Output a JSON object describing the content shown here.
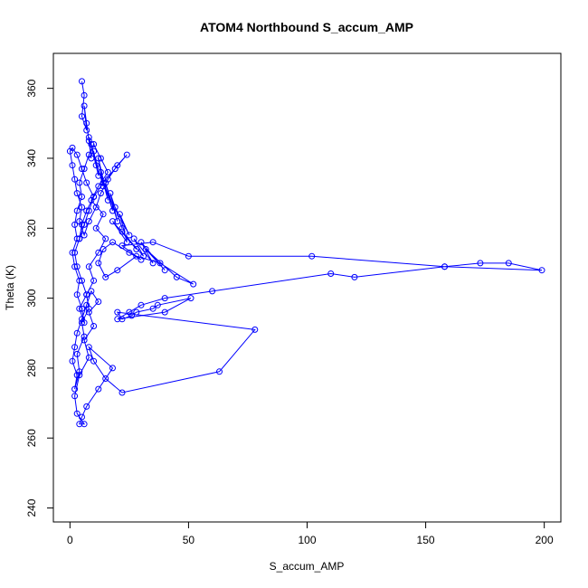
{
  "chart_data": {
    "type": "line",
    "title": "ATOM4 Northbound S_accum_AMP",
    "xlabel": "S_accum_AMP",
    "ylabel": "Theta (K)",
    "xlim": [
      -7,
      207
    ],
    "ylim": [
      236,
      370
    ],
    "xticks": [
      0,
      50,
      100,
      150,
      200
    ],
    "yticks": [
      240,
      260,
      280,
      300,
      320,
      340,
      360
    ],
    "grid": false,
    "legend": "none",
    "line_color": "#0000ff",
    "marker": "open-circle",
    "series": [
      {
        "x": [
          5,
          6,
          5,
          7,
          6,
          8,
          7,
          9,
          8,
          11,
          10,
          12,
          9,
          14,
          12,
          16,
          13,
          18,
          15,
          20,
          17,
          22,
          19,
          25,
          21,
          24,
          18,
          28,
          22,
          31,
          27,
          35,
          30,
          40,
          32,
          45,
          52,
          38,
          28,
          20,
          15,
          12,
          14,
          18,
          25,
          30,
          22,
          35,
          50,
          102,
          158,
          173,
          185,
          199,
          158,
          120,
          110,
          60,
          40,
          30,
          25,
          20,
          40,
          51,
          37,
          35,
          28,
          26,
          22,
          20,
          78,
          63,
          22,
          15,
          10,
          8,
          18,
          12,
          7,
          5,
          4,
          6,
          3,
          2,
          4,
          8,
          6,
          10,
          8,
          12,
          9,
          7,
          5,
          3,
          2,
          1,
          3,
          2,
          4,
          3,
          6,
          5,
          8,
          7,
          10,
          8,
          12,
          15,
          11,
          14,
          9,
          12,
          16,
          13,
          10,
          8,
          6,
          4,
          5,
          3,
          2,
          3,
          1,
          2,
          4,
          3,
          5,
          6,
          4,
          7,
          5,
          3,
          2,
          4,
          6,
          8,
          10,
          7,
          5,
          3,
          1,
          0,
          1,
          2,
          3,
          5,
          4,
          6,
          8,
          11,
          13,
          16,
          20,
          24,
          19,
          14,
          10,
          7,
          5,
          4
        ],
        "y": [
          362,
          358,
          352,
          348,
          355,
          345,
          350,
          340,
          346,
          338,
          342,
          335,
          344,
          332,
          340,
          328,
          336,
          325,
          333,
          322,
          330,
          320,
          326,
          318,
          324,
          316,
          322,
          314,
          319,
          312,
          317,
          310,
          316,
          308,
          314,
          306,
          304,
          310,
          312,
          308,
          306,
          310,
          314,
          316,
          313,
          311,
          315,
          316,
          312,
          312,
          309,
          310,
          310,
          308,
          309,
          306,
          307,
          302,
          300,
          298,
          296,
          294,
          296,
          300,
          298,
          297,
          296,
          295,
          294,
          296,
          291,
          279,
          273,
          277,
          282,
          286,
          280,
          274,
          269,
          266,
          264,
          264,
          267,
          272,
          278,
          283,
          288,
          292,
          296,
          299,
          302,
          298,
          294,
          290,
          286,
          282,
          278,
          274,
          279,
          284,
          289,
          293,
          297,
          301,
          305,
          309,
          313,
          317,
          320,
          324,
          328,
          332,
          336,
          340,
          344,
          341,
          337,
          333,
          329,
          325,
          321,
          317,
          313,
          309,
          305,
          301,
          297,
          293,
          297,
          301,
          305,
          309,
          313,
          317,
          321,
          325,
          329,
          333,
          337,
          341,
          343,
          342,
          338,
          334,
          330,
          326,
          322,
          318,
          322,
          326,
          330,
          334,
          338,
          341,
          337,
          333,
          329,
          325,
          321,
          317
        ]
      }
    ]
  }
}
